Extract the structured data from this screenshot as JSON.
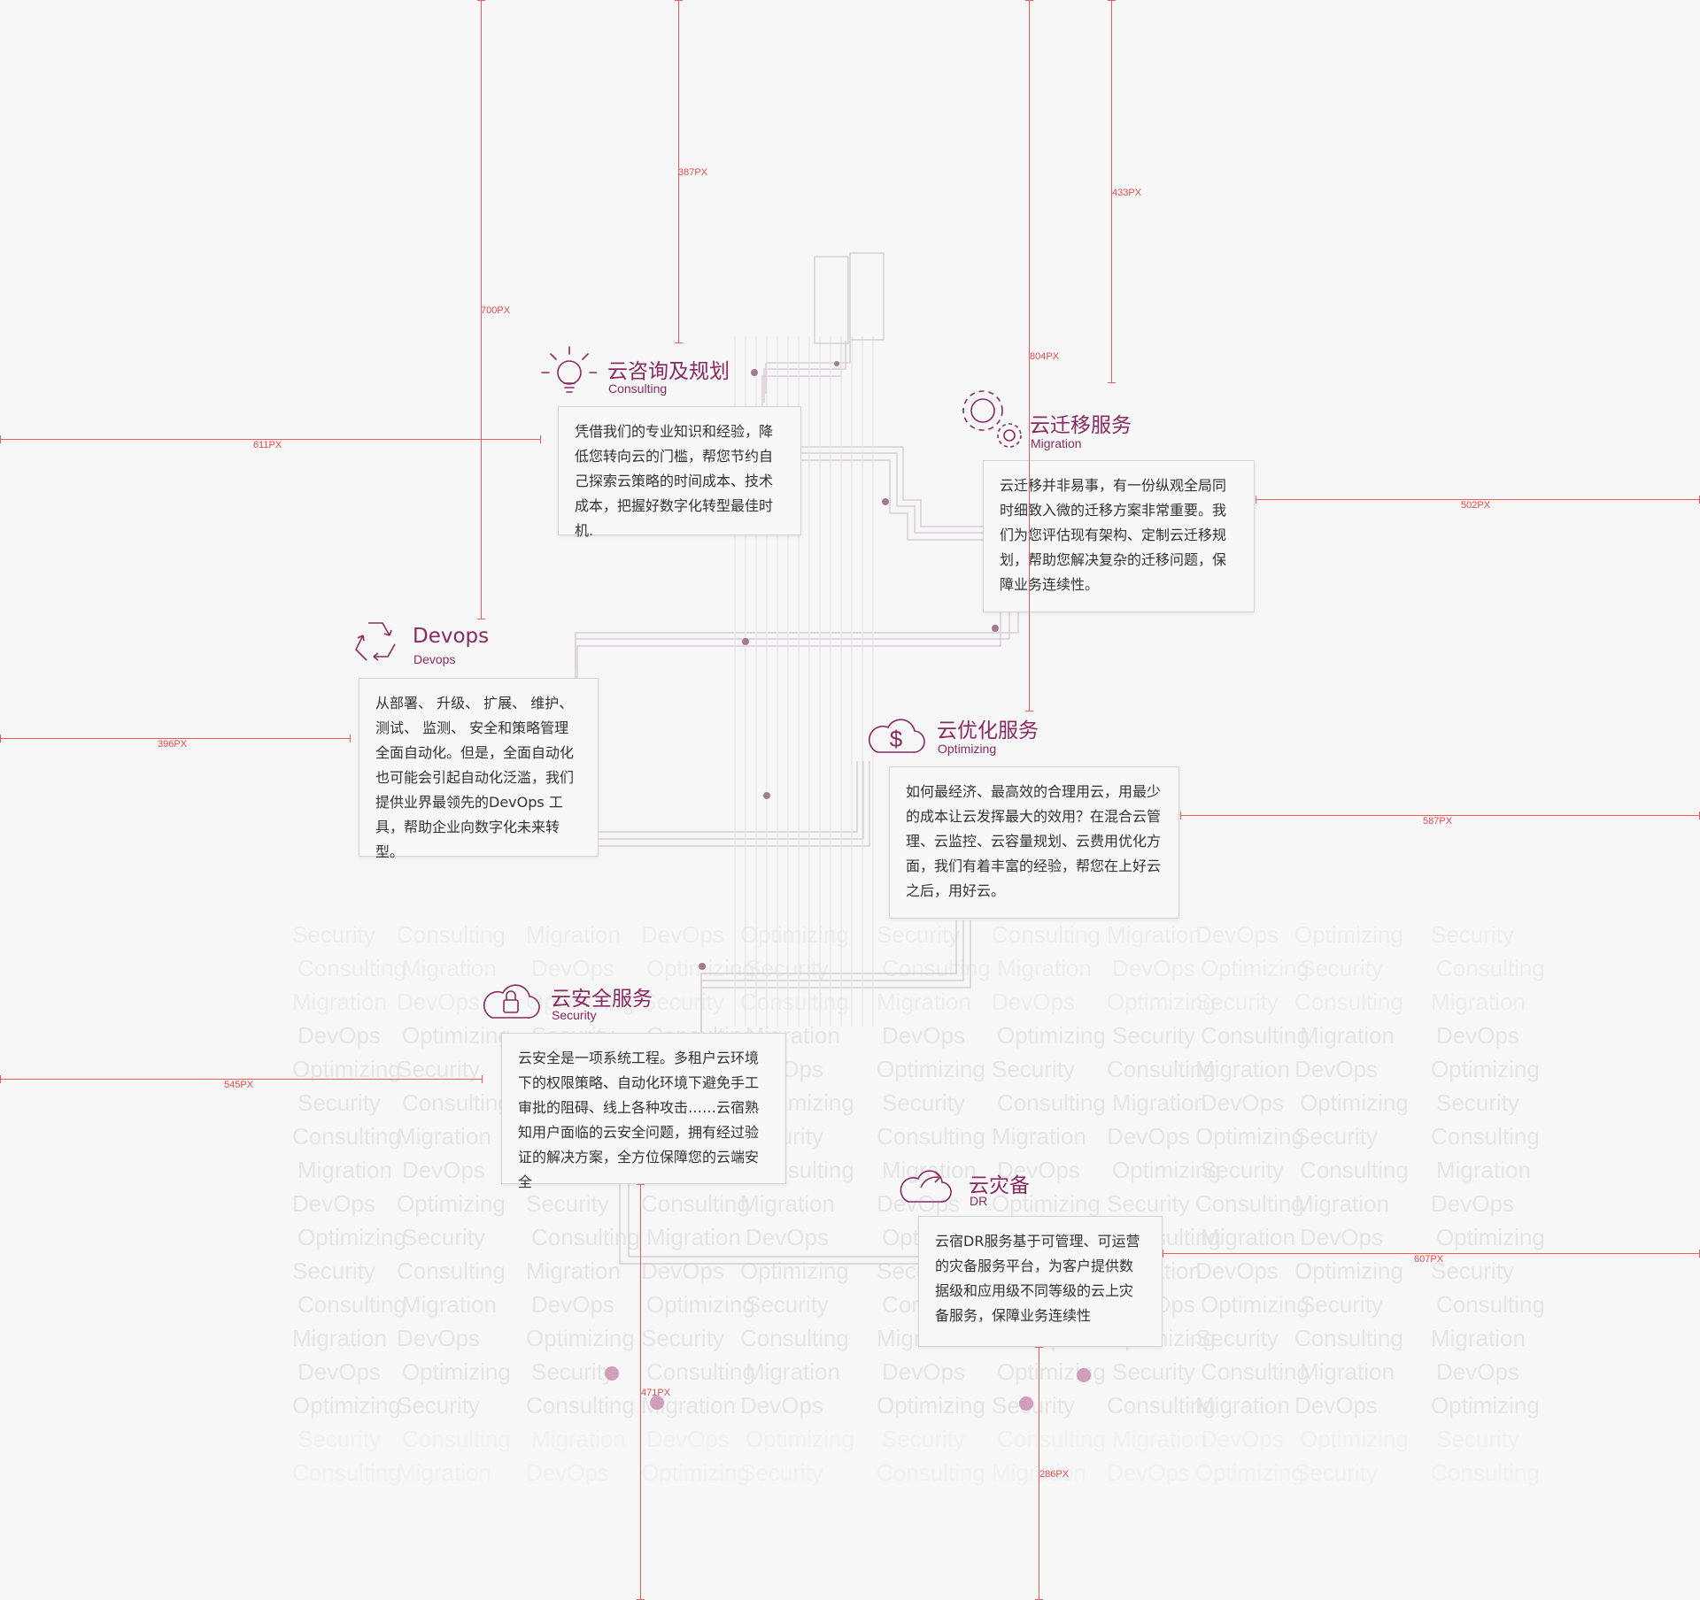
{
  "services": [
    {
      "id": "consulting",
      "title": "云咨询及规划",
      "subtitle": "Consulting",
      "text": "凭借我们的专业知识和经验，降低您转向云的门槛，帮您节约自己探索云策略的时间成本、技术成本，把握好数字化转型最佳时机.",
      "icon": "lightbulb-icon"
    },
    {
      "id": "migration",
      "title": "云迁移服务",
      "subtitle": "Migration",
      "text": "云迁移并非易事，有一份纵观全局同时细致入微的迁移方案非常重要。我们为您评估现有架构、定制云迁移规划，帮助您解决复杂的迁移问题，保障业务连续性。",
      "icon": "gears-icon"
    },
    {
      "id": "devops",
      "title": "Devops",
      "subtitle": "Devops",
      "text": "从部署、 升级、 扩展、 维护、 测试、 监测、 安全和策略管理全面自动化。但是，全面自动化也可能会引起自动化泛滥，我们提供业界最领先的DevOps 工具，帮助企业向数字化未来转型。",
      "icon": "recycle-icon"
    },
    {
      "id": "optimizing",
      "title": "云优化服务",
      "subtitle": "Optimizing",
      "text": "如何最经济、最高效的合理用云，用最少的成本让云发挥最大的效用？在混合云管理、云监控、云容量规划、云费用优化方面，我们有着丰富的经验，帮您在上好云之后，用好云。",
      "icon": "cloud-dollar-icon"
    },
    {
      "id": "security",
      "title": "云安全服务",
      "subtitle": "Security",
      "text": "云安全是一项系统工程。多租户云环境下的权限策略、自动化环境下避免手工审批的阻碍、线上各种攻击……云宿熟知用户面临的云安全问题，拥有经过验证的解决方案，全方位保障您的云端安全",
      "icon": "cloud-lock-icon"
    },
    {
      "id": "dr",
      "title": "云灾备",
      "subtitle": "DR",
      "text": "云宿DR服务基于可管理、可运营的灾备服务平台，为客户提供数据级和应用级不同等级的云上灾备服务，保障业务连续性",
      "icon": "cloud-share-icon"
    }
  ],
  "measurements": [
    "387PX",
    "433PX",
    "700PX",
    "804PX",
    "611PX",
    "502PX",
    "396PX",
    "587PX",
    "545PX",
    "607PX",
    "471PX",
    "286PX"
  ],
  "watermark_words": [
    "Security",
    "Consulting",
    "Migration",
    "DevOps",
    "Optimizing"
  ],
  "colors": {
    "accent": "#8a2a62",
    "measure": "#ef5c5c",
    "card_border": "#d4d4d4",
    "circuit": "#d6c4ce",
    "watermark": "#e6e6e6"
  }
}
